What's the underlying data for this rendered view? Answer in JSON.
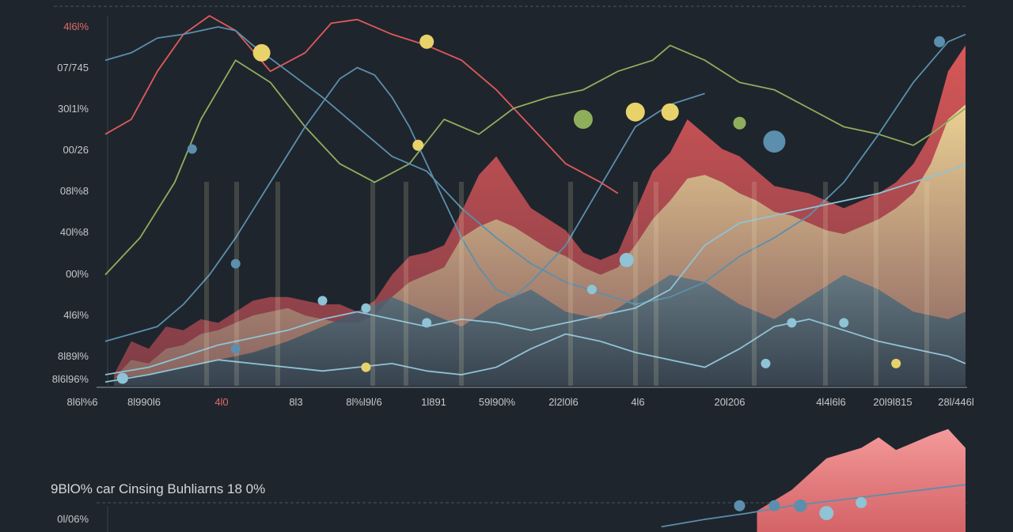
{
  "colors": {
    "background": "#1f252d",
    "red": "#e05a5a",
    "yellow": "#e8d36a",
    "green": "#8fae5c",
    "blue": "#5b8fad",
    "lightblue": "#8fc3d6",
    "tick_red": "#e06a6a",
    "tick": "#c4c8cc"
  },
  "chart_data": [
    {
      "type": "area",
      "title": "",
      "xlabel": "",
      "ylabel": "",
      "y_tick_labels": [
        "4l6l%",
        "07/745",
        "30l1l%",
        "00/26",
        "08l%8",
        "40l%8",
        "00l%",
        "4l6l%",
        "8l89l%",
        "8l6l96%"
      ],
      "x_tick_labels": [
        "8l6l%6",
        "8l990l6",
        "4l0",
        "8l3",
        "8l%l9l/6",
        "1l891",
        "59l90l%",
        "2l2l0l6",
        "4l6",
        "20l206",
        "4l4l6l6",
        "20l9l815",
        "28l/446l"
      ],
      "x_range": [
        0,
        100
      ],
      "y_range": [
        0,
        100
      ],
      "grid": false,
      "legend": "none",
      "series": [
        {
          "kind": "area",
          "color": "red",
          "x": [
            2,
            4,
            6,
            8,
            10,
            12,
            14,
            16,
            18,
            20,
            22,
            24,
            26,
            28,
            30,
            32,
            34,
            36,
            38,
            40,
            42,
            44,
            46,
            48,
            50,
            52,
            54,
            56,
            58,
            60,
            62,
            64,
            66,
            68,
            70,
            72,
            74,
            76,
            78,
            80,
            82,
            84,
            86,
            88,
            90,
            92,
            94,
            96,
            98,
            100
          ],
          "y": [
            3,
            12,
            10,
            16,
            15,
            18,
            17,
            20,
            23,
            24,
            24,
            23,
            22,
            22,
            20,
            23,
            30,
            35,
            36,
            38,
            47,
            57,
            62,
            55,
            48,
            45,
            42,
            36,
            34,
            36,
            47,
            58,
            63,
            72,
            68,
            64,
            62,
            58,
            54,
            53,
            52,
            50,
            48,
            50,
            52,
            55,
            60,
            68,
            85,
            92
          ]
        },
        {
          "kind": "area",
          "color": "yellow",
          "x": [
            2,
            4,
            6,
            8,
            10,
            12,
            14,
            16,
            18,
            20,
            22,
            24,
            26,
            28,
            30,
            32,
            34,
            36,
            38,
            40,
            42,
            44,
            46,
            48,
            50,
            52,
            54,
            56,
            58,
            60,
            62,
            64,
            66,
            68,
            70,
            72,
            74,
            76,
            78,
            80,
            82,
            84,
            86,
            88,
            90,
            92,
            94,
            96,
            98,
            100
          ],
          "y": [
            2,
            7,
            6,
            10,
            11,
            14,
            15,
            17,
            19,
            20,
            21,
            19,
            18,
            17,
            17,
            19,
            24,
            28,
            30,
            32,
            40,
            43,
            45,
            43,
            40,
            37,
            35,
            32,
            30,
            32,
            38,
            45,
            50,
            56,
            57,
            55,
            52,
            50,
            47,
            46,
            44,
            42,
            41,
            43,
            45,
            48,
            52,
            60,
            72,
            76
          ]
        },
        {
          "kind": "area",
          "color": "blue",
          "x": [
            2,
            6,
            10,
            14,
            18,
            22,
            26,
            30,
            34,
            38,
            42,
            46,
            50,
            54,
            58,
            62,
            66,
            70,
            74,
            78,
            82,
            86,
            90,
            94,
            98,
            100
          ],
          "y": [
            2,
            3,
            5,
            7,
            9,
            12,
            16,
            20,
            24,
            20,
            16,
            22,
            26,
            20,
            18,
            24,
            30,
            28,
            22,
            18,
            24,
            30,
            26,
            20,
            18,
            20
          ]
        },
        {
          "kind": "line",
          "color": "red",
          "x": [
            1,
            4,
            7,
            10,
            13,
            16,
            20,
            24,
            27,
            30,
            34,
            38,
            42,
            46,
            50,
            54,
            58,
            60
          ],
          "y": [
            68,
            72,
            85,
            95,
            100,
            96,
            85,
            90,
            98,
            99,
            95,
            92,
            88,
            80,
            70,
            60,
            55,
            52
          ]
        },
        {
          "kind": "line",
          "color": "green",
          "x": [
            1,
            5,
            9,
            12,
            16,
            20,
            24,
            28,
            32,
            36,
            40,
            44,
            48,
            52,
            56,
            60,
            64,
            66,
            70,
            74,
            78,
            82,
            86,
            90,
            94,
            96,
            100
          ],
          "y": [
            30,
            40,
            55,
            72,
            88,
            82,
            70,
            60,
            55,
            60,
            72,
            68,
            75,
            78,
            80,
            85,
            88,
            92,
            88,
            82,
            80,
            75,
            70,
            68,
            65,
            68,
            75
          ]
        },
        {
          "kind": "line",
          "color": "blue",
          "x": [
            1,
            4,
            7,
            10,
            12,
            14,
            16,
            18,
            22,
            26,
            30,
            34,
            38,
            42,
            46,
            50,
            54,
            58,
            62,
            66,
            70,
            74,
            78,
            82,
            86,
            90,
            94,
            98,
            100
          ],
          "y": [
            88,
            90,
            94,
            95,
            96,
            97,
            96,
            92,
            85,
            78,
            70,
            62,
            58,
            48,
            40,
            33,
            28,
            25,
            22,
            24,
            28,
            35,
            40,
            46,
            55,
            68,
            82,
            93,
            95
          ]
        },
        {
          "kind": "line",
          "color": "blue",
          "x": [
            1,
            4,
            7,
            10,
            13,
            16,
            20,
            24,
            28,
            30,
            32,
            34,
            36,
            38,
            40,
            42,
            44,
            46,
            48,
            50,
            54,
            58,
            62,
            66,
            70
          ],
          "y": [
            12,
            14,
            16,
            22,
            30,
            40,
            55,
            70,
            83,
            86,
            84,
            78,
            70,
            60,
            50,
            40,
            32,
            26,
            24,
            28,
            38,
            54,
            70,
            76,
            79
          ]
        },
        {
          "kind": "line",
          "color": "lightblue",
          "x": [
            1,
            6,
            10,
            14,
            18,
            22,
            26,
            30,
            34,
            38,
            42,
            46,
            50,
            54,
            58,
            62,
            66,
            70,
            74,
            78,
            82,
            86,
            90,
            94,
            98,
            100
          ],
          "y": [
            3,
            5,
            8,
            11,
            13,
            15,
            18,
            20,
            18,
            16,
            18,
            17,
            15,
            17,
            19,
            21,
            26,
            38,
            44,
            46,
            48,
            50,
            52,
            55,
            58,
            60
          ]
        },
        {
          "kind": "line",
          "color": "lightblue",
          "x": [
            1,
            6,
            10,
            14,
            18,
            22,
            26,
            30,
            34,
            38,
            42,
            46,
            50,
            54,
            58,
            62,
            66,
            70,
            74,
            78,
            82,
            86,
            90,
            94,
            98,
            100
          ],
          "y": [
            1,
            3,
            5,
            7,
            6,
            5,
            4,
            5,
            6,
            4,
            3,
            5,
            10,
            14,
            12,
            9,
            7,
            5,
            10,
            16,
            18,
            15,
            12,
            10,
            8,
            6
          ]
        }
      ],
      "markers": [
        {
          "x": 19,
          "y": 90,
          "r": 11,
          "color": "yellow"
        },
        {
          "x": 38,
          "y": 93,
          "r": 9,
          "color": "yellow"
        },
        {
          "x": 56,
          "y": 72,
          "r": 12,
          "color": "green"
        },
        {
          "x": 62,
          "y": 74,
          "r": 12,
          "color": "yellow"
        },
        {
          "x": 66,
          "y": 74,
          "r": 11,
          "color": "yellow"
        },
        {
          "x": 74,
          "y": 71,
          "r": 8,
          "color": "green"
        },
        {
          "x": 78,
          "y": 66,
          "r": 14,
          "color": "blue"
        },
        {
          "x": 97,
          "y": 93,
          "r": 7,
          "color": "blue"
        },
        {
          "x": 37,
          "y": 65,
          "r": 7,
          "color": "yellow"
        },
        {
          "x": 11,
          "y": 64,
          "r": 6,
          "color": "blue"
        },
        {
          "x": 16,
          "y": 33,
          "r": 6,
          "color": "blue"
        },
        {
          "x": 26,
          "y": 23,
          "r": 6,
          "color": "lightblue"
        },
        {
          "x": 31,
          "y": 21,
          "r": 6,
          "color": "lightblue"
        },
        {
          "x": 38,
          "y": 17,
          "r": 6,
          "color": "lightblue"
        },
        {
          "x": 61,
          "y": 34,
          "r": 9,
          "color": "lightblue"
        },
        {
          "x": 57,
          "y": 26,
          "r": 6,
          "color": "lightblue"
        },
        {
          "x": 77,
          "y": 6,
          "r": 6,
          "color": "lightblue"
        },
        {
          "x": 80,
          "y": 17,
          "r": 6,
          "color": "lightblue"
        },
        {
          "x": 86,
          "y": 17,
          "r": 6,
          "color": "lightblue"
        },
        {
          "x": 92,
          "y": 6,
          "r": 6,
          "color": "yellow"
        },
        {
          "x": 16,
          "y": 10,
          "r": 6,
          "color": "blue"
        },
        {
          "x": 31,
          "y": 5,
          "r": 6,
          "color": "yellow"
        },
        {
          "x": 3,
          "y": 2,
          "r": 7,
          "color": "lightblue"
        }
      ]
    },
    {
      "type": "area",
      "title": "9BlO% car Cinsing Buhliarns 18 0%",
      "xlabel": "",
      "ylabel": "",
      "y_tick_labels": [
        "0l/06%"
      ],
      "x_range": [
        0,
        100
      ],
      "y_range": [
        0,
        100
      ],
      "grid": false,
      "legend": "none",
      "series": [
        {
          "kind": "area",
          "color": "red",
          "x": [
            76,
            80,
            84,
            88,
            90,
            92,
            94,
            96,
            98,
            100
          ],
          "y": [
            20,
            40,
            70,
            80,
            90,
            78,
            85,
            92,
            98,
            80
          ]
        },
        {
          "kind": "line",
          "color": "blue",
          "x": [
            65,
            70,
            75,
            80,
            85,
            90,
            95,
            100
          ],
          "y": [
            5,
            12,
            18,
            25,
            30,
            35,
            40,
            45
          ]
        }
      ],
      "markers": [
        {
          "x": 74,
          "y": 25,
          "r": 7,
          "color": "blue"
        },
        {
          "x": 78,
          "y": 25,
          "r": 7,
          "color": "blue"
        },
        {
          "x": 81,
          "y": 25,
          "r": 8,
          "color": "blue"
        },
        {
          "x": 84,
          "y": 18,
          "r": 9,
          "color": "lightblue"
        },
        {
          "x": 88,
          "y": 28,
          "r": 7,
          "color": "lightblue"
        }
      ]
    }
  ]
}
